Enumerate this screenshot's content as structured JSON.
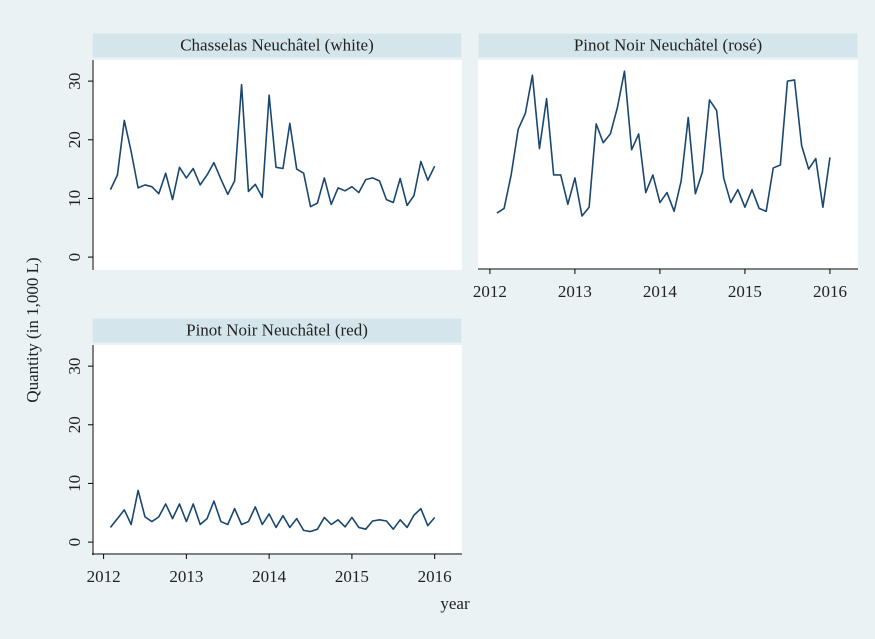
{
  "axis_labels": {
    "y": "Quantity (in 1,000 L)",
    "x": "year"
  },
  "chart_data": [
    {
      "type": "line",
      "title": "Chasselas Neuchâtel (white)",
      "color": "#1a476f",
      "xlim": [
        2011.86,
        2016.33
      ],
      "ylim": [
        -2.2,
        33.6
      ],
      "yticks": [
        0,
        10,
        20,
        30
      ],
      "x": [
        2012.083,
        2012.167,
        2012.25,
        2012.333,
        2012.417,
        2012.5,
        2012.583,
        2012.667,
        2012.75,
        2012.833,
        2012.917,
        2013,
        2013.083,
        2013.167,
        2013.25,
        2013.333,
        2013.417,
        2013.5,
        2013.583,
        2013.667,
        2013.75,
        2013.833,
        2013.917,
        2014,
        2014.083,
        2014.167,
        2014.25,
        2014.333,
        2014.417,
        2014.5,
        2014.583,
        2014.667,
        2014.75,
        2014.833,
        2014.917,
        2015,
        2015.083,
        2015.167,
        2015.25,
        2015.333,
        2015.417,
        2015.5,
        2015.583,
        2015.667,
        2015.75,
        2015.833,
        2015.917,
        2016
      ],
      "values": [
        11.5,
        14,
        23.3,
        18,
        11.8,
        12.3,
        12,
        10.8,
        14.3,
        9.8,
        15.3,
        13.5,
        15.1,
        12.3,
        14,
        16.1,
        13.3,
        10.7,
        13,
        29.4,
        11.2,
        12.4,
        10.2,
        27.6,
        15.3,
        15.1,
        22.8,
        15,
        14.3,
        8.6,
        9.2,
        13.5,
        9,
        11.8,
        11.3,
        12,
        11,
        13.2,
        13.5,
        13,
        9.8,
        9.3,
        13.4,
        8.8,
        10.5,
        16.3,
        13.1,
        15.5
      ]
    },
    {
      "type": "line",
      "title": "Pinot Noir Neuchâtel (rosé)",
      "color": "#1a476f",
      "xlim": [
        2011.86,
        2016.33
      ],
      "ylim": [
        -2.2,
        33.6
      ],
      "xticks": [
        2012,
        2013,
        2014,
        2015,
        2016
      ],
      "x": [
        2012.083,
        2012.167,
        2012.25,
        2012.333,
        2012.417,
        2012.5,
        2012.583,
        2012.667,
        2012.75,
        2012.833,
        2012.917,
        2013,
        2013.083,
        2013.167,
        2013.25,
        2013.333,
        2013.417,
        2013.5,
        2013.583,
        2013.667,
        2013.75,
        2013.833,
        2013.917,
        2014,
        2014.083,
        2014.167,
        2014.25,
        2014.333,
        2014.417,
        2014.5,
        2014.583,
        2014.667,
        2014.75,
        2014.833,
        2014.917,
        2015,
        2015.083,
        2015.167,
        2015.25,
        2015.333,
        2015.417,
        2015.5,
        2015.583,
        2015.667,
        2015.75,
        2015.833,
        2015.917,
        2016
      ],
      "values": [
        7.5,
        8.3,
        14,
        21.8,
        24.5,
        31,
        18.5,
        27,
        14,
        14,
        9,
        13.5,
        7,
        8.5,
        22.7,
        19.5,
        21,
        25.5,
        31.7,
        18.3,
        21,
        11,
        14,
        9.3,
        11,
        7.8,
        13,
        23.8,
        10.8,
        14.5,
        26.8,
        25,
        13.5,
        9.3,
        11.5,
        8.5,
        11.5,
        8.3,
        7.8,
        15.2,
        15.7,
        30,
        30.2,
        19,
        15,
        16.8,
        8.5,
        17
      ]
    },
    {
      "type": "line",
      "title": "Pinot Noir Neuchâtel (red)",
      "color": "#1a476f",
      "xlim": [
        2011.86,
        2016.33
      ],
      "ylim": [
        -2.2,
        33.6
      ],
      "yticks": [
        0,
        10,
        20,
        30
      ],
      "xticks": [
        2012,
        2013,
        2014,
        2015,
        2016
      ],
      "x": [
        2012.083,
        2012.167,
        2012.25,
        2012.333,
        2012.417,
        2012.5,
        2012.583,
        2012.667,
        2012.75,
        2012.833,
        2012.917,
        2013,
        2013.083,
        2013.167,
        2013.25,
        2013.333,
        2013.417,
        2013.5,
        2013.583,
        2013.667,
        2013.75,
        2013.833,
        2013.917,
        2014,
        2014.083,
        2014.167,
        2014.25,
        2014.333,
        2014.417,
        2014.5,
        2014.583,
        2014.667,
        2014.75,
        2014.833,
        2014.917,
        2015,
        2015.083,
        2015.167,
        2015.25,
        2015.333,
        2015.417,
        2015.5,
        2015.583,
        2015.667,
        2015.75,
        2015.833,
        2015.917,
        2016
      ],
      "values": [
        2.5,
        4,
        5.5,
        3,
        8.8,
        4.3,
        3.5,
        4.3,
        6.5,
        4,
        6.5,
        3.5,
        6.5,
        3,
        4,
        7,
        3.5,
        3,
        5.7,
        3,
        3.5,
        6,
        3,
        4.8,
        2.5,
        4.5,
        2.5,
        4,
        2,
        1.8,
        2.2,
        4.2,
        3,
        3.8,
        2.6,
        4.2,
        2.5,
        2.2,
        3.6,
        3.8,
        3.6,
        2.2,
        3.8,
        2.5,
        4.6,
        5.7,
        2.8,
        4.2
      ]
    }
  ]
}
